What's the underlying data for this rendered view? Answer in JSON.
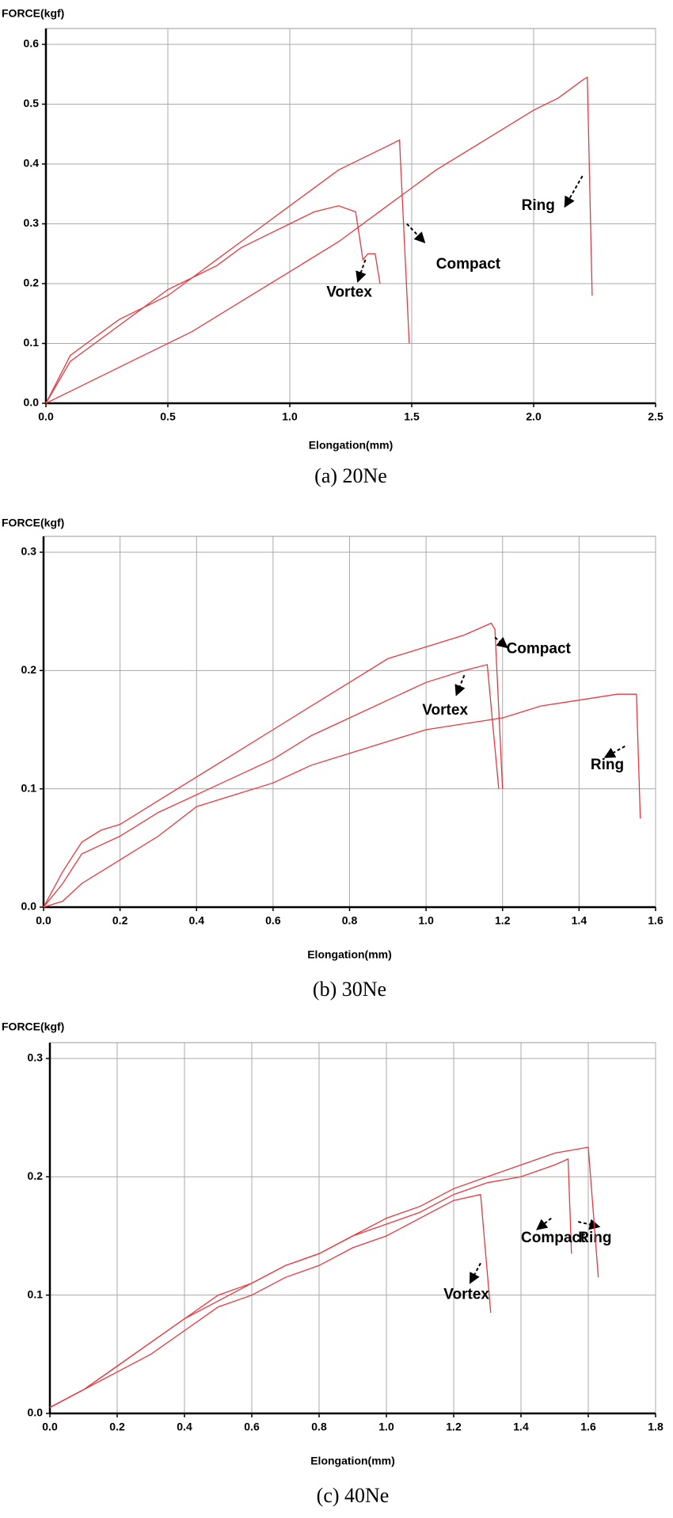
{
  "chart_data": [
    {
      "type": "line",
      "caption": "(a)  20Ne",
      "ylabel": "FORCE(kgf)",
      "xlabel": "Elongation(mm)",
      "xlim": [
        0,
        2.5
      ],
      "ylim": [
        0,
        0.6
      ],
      "grid": true,
      "xticks": [
        {
          "value": 0,
          "label": "0.0"
        },
        {
          "value": 0.5,
          "label": "0.5"
        },
        {
          "value": 1,
          "label": "1.0"
        },
        {
          "value": 1.5,
          "label": "1.5"
        },
        {
          "value": 2,
          "label": "2.0"
        },
        {
          "value": 2.5,
          "label": "2.5"
        }
      ],
      "yticks": [
        {
          "value": 0,
          "label": "0.0"
        },
        {
          "value": 0.1,
          "label": "0.1"
        },
        {
          "value": 0.2,
          "label": "0.2"
        },
        {
          "value": 0.3,
          "label": "0.3"
        },
        {
          "value": 0.4,
          "label": "0.4"
        },
        {
          "value": 0.5,
          "label": "0.5"
        },
        {
          "value": 0.6,
          "label": "0.6"
        }
      ],
      "series": [
        {
          "name": "Vortex",
          "color": "#e8383f",
          "x": [
            0,
            0.1,
            0.2,
            0.3,
            0.4,
            0.5,
            0.6,
            0.7,
            0.8,
            0.9,
            1.0,
            1.1,
            1.2,
            1.27,
            1.3,
            1.32,
            1.35,
            1.37
          ],
          "values": [
            0,
            0.08,
            0.11,
            0.14,
            0.16,
            0.19,
            0.21,
            0.23,
            0.26,
            0.28,
            0.3,
            0.32,
            0.33,
            0.32,
            0.24,
            0.25,
            0.25,
            0.2
          ]
        },
        {
          "name": "Compact",
          "color": "#e8383f",
          "x": [
            0,
            0.1,
            0.2,
            0.3,
            0.4,
            0.5,
            0.6,
            0.7,
            0.8,
            0.9,
            1.0,
            1.1,
            1.2,
            1.3,
            1.4,
            1.45,
            1.49
          ],
          "values": [
            0,
            0.07,
            0.1,
            0.13,
            0.16,
            0.18,
            0.21,
            0.24,
            0.27,
            0.3,
            0.33,
            0.36,
            0.39,
            0.41,
            0.43,
            0.44,
            0.1
          ]
        },
        {
          "name": "Ring",
          "color": "#e8383f",
          "x": [
            0,
            0.1,
            0.2,
            0.4,
            0.6,
            0.8,
            1.0,
            1.2,
            1.4,
            1.6,
            1.8,
            2.0,
            2.1,
            2.2,
            2.22,
            2.24
          ],
          "values": [
            0,
            0.02,
            0.04,
            0.08,
            0.12,
            0.17,
            0.22,
            0.27,
            0.33,
            0.39,
            0.44,
            0.49,
            0.51,
            0.54,
            0.545,
            0.18
          ]
        }
      ]
    },
    {
      "type": "line",
      "caption": "(b)  30Ne",
      "ylabel": "FORCE(kgf)",
      "xlabel": "Elongation(mm)",
      "xlim": [
        0,
        1.6
      ],
      "ylim": [
        0,
        0.3
      ],
      "grid": true,
      "xticks": [
        {
          "value": 0,
          "label": "0.0"
        },
        {
          "value": 0.2,
          "label": "0.2"
        },
        {
          "value": 0.4,
          "label": "0.4"
        },
        {
          "value": 0.6,
          "label": "0.6"
        },
        {
          "value": 0.8,
          "label": "0.8"
        },
        {
          "value": 1,
          "label": "1.0"
        },
        {
          "value": 1.2,
          "label": "1.2"
        },
        {
          "value": 1.4,
          "label": "1.4"
        },
        {
          "value": 1.6,
          "label": "1.6"
        }
      ],
      "yticks": [
        {
          "value": 0,
          "label": "0.0"
        },
        {
          "value": 0.1,
          "label": "0.1"
        },
        {
          "value": 0.2,
          "label": "0.2"
        },
        {
          "value": 0.3,
          "label": "0.3"
        }
      ],
      "series": [
        {
          "name": "Compact",
          "color": "#e8383f",
          "x": [
            0,
            0.05,
            0.1,
            0.15,
            0.2,
            0.3,
            0.4,
            0.5,
            0.6,
            0.7,
            0.8,
            0.9,
            1.0,
            1.1,
            1.17,
            1.18,
            1.2
          ],
          "values": [
            0,
            0.03,
            0.055,
            0.065,
            0.07,
            0.09,
            0.11,
            0.13,
            0.15,
            0.17,
            0.19,
            0.21,
            0.22,
            0.23,
            0.24,
            0.235,
            0.1
          ]
        },
        {
          "name": "Vortex",
          "color": "#e8383f",
          "x": [
            0,
            0.05,
            0.1,
            0.2,
            0.3,
            0.4,
            0.5,
            0.6,
            0.7,
            0.8,
            0.9,
            1.0,
            1.1,
            1.16,
            1.19
          ],
          "values": [
            0,
            0.02,
            0.045,
            0.06,
            0.08,
            0.095,
            0.11,
            0.125,
            0.145,
            0.16,
            0.175,
            0.19,
            0.2,
            0.205,
            0.1
          ]
        },
        {
          "name": "Ring",
          "color": "#e8383f",
          "x": [
            0,
            0.05,
            0.1,
            0.2,
            0.3,
            0.4,
            0.5,
            0.6,
            0.7,
            0.8,
            0.9,
            1.0,
            1.1,
            1.2,
            1.3,
            1.4,
            1.5,
            1.55,
            1.56
          ],
          "values": [
            0,
            0.005,
            0.02,
            0.04,
            0.06,
            0.085,
            0.095,
            0.105,
            0.12,
            0.13,
            0.14,
            0.15,
            0.155,
            0.16,
            0.17,
            0.175,
            0.18,
            0.18,
            0.075
          ]
        }
      ]
    },
    {
      "type": "line",
      "caption": "(c)  40Ne",
      "ylabel": "FORCE(kgf)",
      "xlabel": "Elongation(mm)",
      "xlim": [
        0,
        1.8
      ],
      "ylim": [
        0,
        0.3
      ],
      "grid": true,
      "xticks": [
        {
          "value": 0,
          "label": "0.0"
        },
        {
          "value": 0.2,
          "label": "0.2"
        },
        {
          "value": 0.4,
          "label": "0.4"
        },
        {
          "value": 0.6,
          "label": "0.6"
        },
        {
          "value": 0.8,
          "label": "0.8"
        },
        {
          "value": 1,
          "label": "1.0"
        },
        {
          "value": 1.2,
          "label": "1.2"
        },
        {
          "value": 1.4,
          "label": "1.4"
        },
        {
          "value": 1.6,
          "label": "1.6"
        },
        {
          "value": 1.8,
          "label": "1.8"
        }
      ],
      "yticks": [
        {
          "value": 0,
          "label": "0.0"
        },
        {
          "value": 0.1,
          "label": "0.1"
        },
        {
          "value": 0.2,
          "label": "0.2"
        },
        {
          "value": 0.3,
          "label": "0.3"
        }
      ],
      "series": [
        {
          "name": "Vortex",
          "color": "#e8383f",
          "x": [
            0,
            0.1,
            0.2,
            0.3,
            0.4,
            0.5,
            0.6,
            0.7,
            0.8,
            0.9,
            1.0,
            1.1,
            1.2,
            1.28,
            1.31
          ],
          "values": [
            0.005,
            0.02,
            0.035,
            0.05,
            0.07,
            0.09,
            0.1,
            0.115,
            0.125,
            0.14,
            0.15,
            0.165,
            0.18,
            0.185,
            0.085
          ]
        },
        {
          "name": "Ring",
          "color": "#e8383f",
          "x": [
            0,
            0.1,
            0.2,
            0.3,
            0.4,
            0.5,
            0.6,
            0.7,
            0.8,
            0.9,
            1.0,
            1.1,
            1.2,
            1.3,
            1.4,
            1.5,
            1.54,
            1.55
          ],
          "values": [
            0.005,
            0.02,
            0.04,
            0.06,
            0.08,
            0.095,
            0.11,
            0.125,
            0.135,
            0.15,
            0.16,
            0.17,
            0.185,
            0.195,
            0.2,
            0.21,
            0.215,
            0.135
          ]
        },
        {
          "name": "Compact",
          "color": "#e8383f",
          "x": [
            0,
            0.1,
            0.2,
            0.3,
            0.4,
            0.5,
            0.6,
            0.7,
            0.8,
            0.9,
            1.0,
            1.1,
            1.2,
            1.3,
            1.4,
            1.5,
            1.6,
            1.63
          ],
          "values": [
            0.005,
            0.02,
            0.04,
            0.06,
            0.08,
            0.1,
            0.11,
            0.125,
            0.135,
            0.15,
            0.165,
            0.175,
            0.19,
            0.2,
            0.21,
            0.22,
            0.225,
            0.115
          ]
        }
      ]
    }
  ]
}
